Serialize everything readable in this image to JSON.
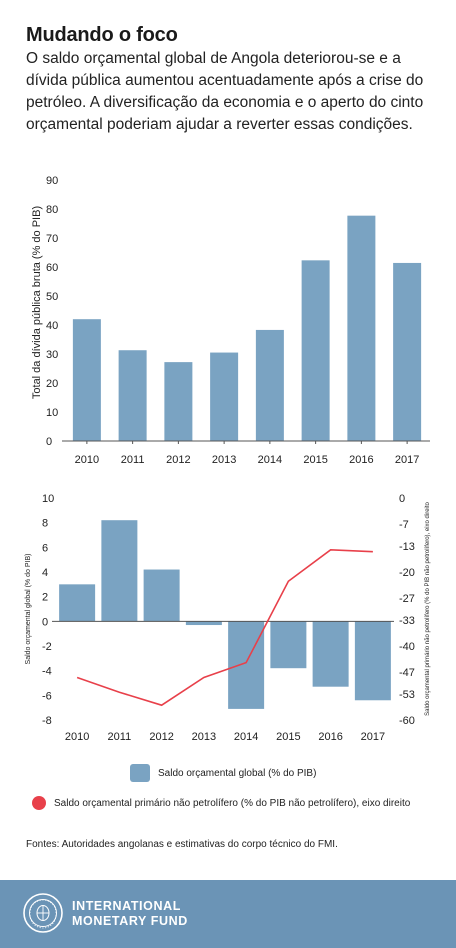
{
  "header": {
    "title": "Mudando o foco",
    "subtitle": "O saldo orçamental global de Angola deteriorou-se e a dívida pública aumentou acentuadamente após a crise do petróleo. A diversificação da economia e o aperto do cinto orçamental poderiam ajudar a reverter essas condições."
  },
  "colors": {
    "bar": "#7aa3c2",
    "line": "#e8404a",
    "footer": "#6b94b6"
  },
  "chart_data": [
    {
      "type": "bar",
      "categories": [
        "2010",
        "2011",
        "2012",
        "2013",
        "2014",
        "2015",
        "2016",
        "2017"
      ],
      "values": [
        42,
        31.3,
        27.2,
        30.5,
        38.3,
        62.3,
        77.7,
        61.4
      ],
      "ylabel": "Total da dívida pública bruta (% do PIB)",
      "ylim": [
        0,
        90
      ],
      "yticks": [
        "90",
        "80",
        "70",
        "60",
        "50",
        "40",
        "30",
        "20",
        "10",
        "0"
      ],
      "grid": false
    },
    {
      "type": "bar+line",
      "categories": [
        "2010",
        "2011",
        "2012",
        "2013",
        "2014",
        "2015",
        "2016",
        "2017"
      ],
      "series": [
        {
          "name": "Saldo orçamental global (% do PIB)",
          "type": "bar",
          "axis": "left",
          "values": [
            3.0,
            8.2,
            4.2,
            -0.3,
            -7.1,
            -3.8,
            -5.3,
            -6.4
          ]
        },
        {
          "name": "Saldo orçamental primário não petrolífero (% do PIB não petrolífero), eixo direito",
          "type": "line",
          "axis": "right",
          "values": [
            -48.5,
            -52.5,
            -56,
            -48.5,
            -44.5,
            -22.5,
            -14,
            -14.5
          ]
        }
      ],
      "ylabel": "Saldo orçamental global (% do PIB)",
      "ylim": [
        -8,
        10
      ],
      "yticks": [
        "10",
        "8",
        "6",
        "4",
        "2",
        "0",
        "-2",
        "-4",
        "-6",
        "-8"
      ],
      "y2label": "Saldo orçamental primário não petrolífero (% do PIB não petrolífero), eixo direito",
      "y2lim": [
        -60,
        0
      ],
      "y2ticks": [
        "0",
        "-7",
        "-13",
        "-20",
        "-27",
        "-33",
        "-40",
        "-47",
        "-53",
        "-60"
      ],
      "grid": false
    }
  ],
  "legend": {
    "bar_label": "Saldo orçamental global (% do PIB)",
    "line_label": "Saldo orçamental primário não petrolífero (% do PIB não petrolífero), eixo direito"
  },
  "source": "Fontes: Autoridades angolanas e estimativas do corpo técnico do FMI.",
  "footer": {
    "org_line1": "INTERNATIONAL",
    "org_line2": "MONETARY FUND"
  }
}
